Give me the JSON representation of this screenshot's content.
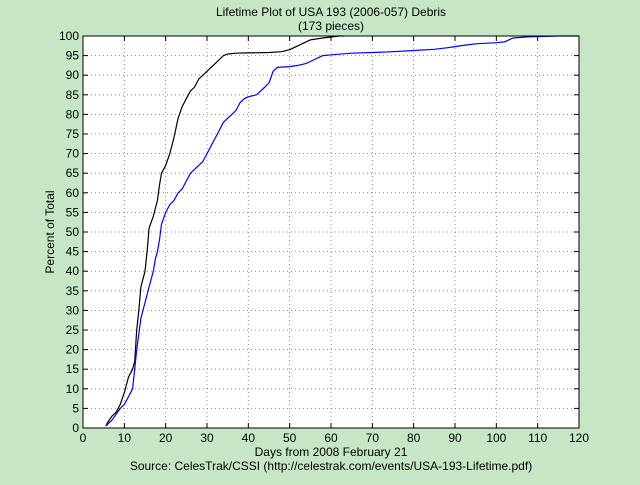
{
  "chart_data": {
    "type": "line",
    "title": "Lifetime Plot of USA 193 (2006-057) Debris",
    "subtitle": "(173 pieces)",
    "xlabel": "Days from 2008 February 21",
    "ylabel": "Percent of Total",
    "source": "Source: CelesTrak/CSSI (http://celestrak.com/events/USA-193-Lifetime.pdf)",
    "xlim": [
      0,
      120
    ],
    "ylim": [
      0,
      100
    ],
    "x_ticks": [
      0,
      10,
      20,
      30,
      40,
      50,
      60,
      70,
      80,
      90,
      100,
      110,
      120
    ],
    "y_ticks": [
      0,
      5,
      10,
      15,
      20,
      25,
      30,
      35,
      40,
      45,
      50,
      55,
      60,
      65,
      70,
      75,
      80,
      85,
      90,
      95,
      100
    ],
    "grid": true,
    "colors": {
      "background": "#c6e6c6",
      "plot_area": "#ffffff",
      "series_1": "#000000",
      "series_2": "#0000ff"
    },
    "series": [
      {
        "color": "#000000",
        "points": [
          [
            5.5,
            0.5
          ],
          [
            6,
            1.5
          ],
          [
            7,
            3
          ],
          [
            8,
            4
          ],
          [
            9,
            6
          ],
          [
            10,
            9
          ],
          [
            10.5,
            11
          ],
          [
            11,
            13
          ],
          [
            12,
            15
          ],
          [
            12.5,
            17
          ],
          [
            13,
            25
          ],
          [
            13.5,
            30
          ],
          [
            14,
            36
          ],
          [
            15,
            40
          ],
          [
            15.5,
            45
          ],
          [
            16,
            51
          ],
          [
            17,
            54
          ],
          [
            17.5,
            56
          ],
          [
            18,
            58
          ],
          [
            18.5,
            62
          ],
          [
            19,
            65
          ],
          [
            20,
            67
          ],
          [
            21,
            70
          ],
          [
            22,
            74
          ],
          [
            23,
            79
          ],
          [
            24,
            82
          ],
          [
            25,
            84
          ],
          [
            26,
            86
          ],
          [
            27,
            87
          ],
          [
            28,
            89
          ],
          [
            29,
            90
          ],
          [
            30,
            91
          ],
          [
            31,
            92
          ],
          [
            32,
            93
          ],
          [
            33,
            94
          ],
          [
            34,
            95
          ],
          [
            35,
            95.4
          ],
          [
            37,
            95.6
          ],
          [
            40,
            95.7
          ],
          [
            45,
            95.8
          ],
          [
            48,
            96
          ],
          [
            50,
            96.5
          ],
          [
            52,
            97.5
          ],
          [
            55,
            99
          ],
          [
            58,
            99.5
          ],
          [
            62,
            100
          ],
          [
            63,
            100
          ]
        ]
      },
      {
        "color": "#0000ff",
        "points": [
          [
            5.5,
            0.5
          ],
          [
            7,
            2
          ],
          [
            8,
            3.5
          ],
          [
            9,
            5
          ],
          [
            10,
            6
          ],
          [
            11,
            8
          ],
          [
            12,
            10
          ],
          [
            12.5,
            15
          ],
          [
            13,
            20
          ],
          [
            13.5,
            24
          ],
          [
            14,
            28
          ],
          [
            15,
            32
          ],
          [
            16,
            36
          ],
          [
            17,
            40
          ],
          [
            17.5,
            43
          ],
          [
            18,
            45
          ],
          [
            18.5,
            48
          ],
          [
            19,
            52
          ],
          [
            20,
            55
          ],
          [
            21,
            57
          ],
          [
            22,
            58
          ],
          [
            23,
            60
          ],
          [
            24,
            61
          ],
          [
            25,
            63
          ],
          [
            26,
            65
          ],
          [
            27,
            66
          ],
          [
            28,
            67
          ],
          [
            29,
            68
          ],
          [
            30,
            70
          ],
          [
            31,
            72
          ],
          [
            32,
            74
          ],
          [
            33,
            76
          ],
          [
            34,
            78
          ],
          [
            35,
            79
          ],
          [
            36,
            80
          ],
          [
            37,
            81
          ],
          [
            38,
            83
          ],
          [
            39,
            84
          ],
          [
            40,
            84.5
          ],
          [
            42,
            85
          ],
          [
            43,
            86
          ],
          [
            44,
            87
          ],
          [
            45,
            88
          ],
          [
            46,
            91
          ],
          [
            47,
            92
          ],
          [
            50,
            92.2
          ],
          [
            52,
            92.5
          ],
          [
            54,
            93
          ],
          [
            55,
            93.5
          ],
          [
            56,
            94
          ],
          [
            57,
            94.5
          ],
          [
            58,
            95
          ],
          [
            60,
            95.2
          ],
          [
            65,
            95.6
          ],
          [
            70,
            95.8
          ],
          [
            75,
            96
          ],
          [
            80,
            96.3
          ],
          [
            85,
            96.6
          ],
          [
            88,
            97
          ],
          [
            90,
            97.3
          ],
          [
            92,
            97.6
          ],
          [
            95,
            98
          ],
          [
            100,
            98.3
          ],
          [
            102,
            98.5
          ],
          [
            104,
            99.5
          ],
          [
            108,
            99.8
          ],
          [
            112,
            99.9
          ],
          [
            115,
            100
          ],
          [
            120,
            100
          ]
        ]
      }
    ]
  }
}
